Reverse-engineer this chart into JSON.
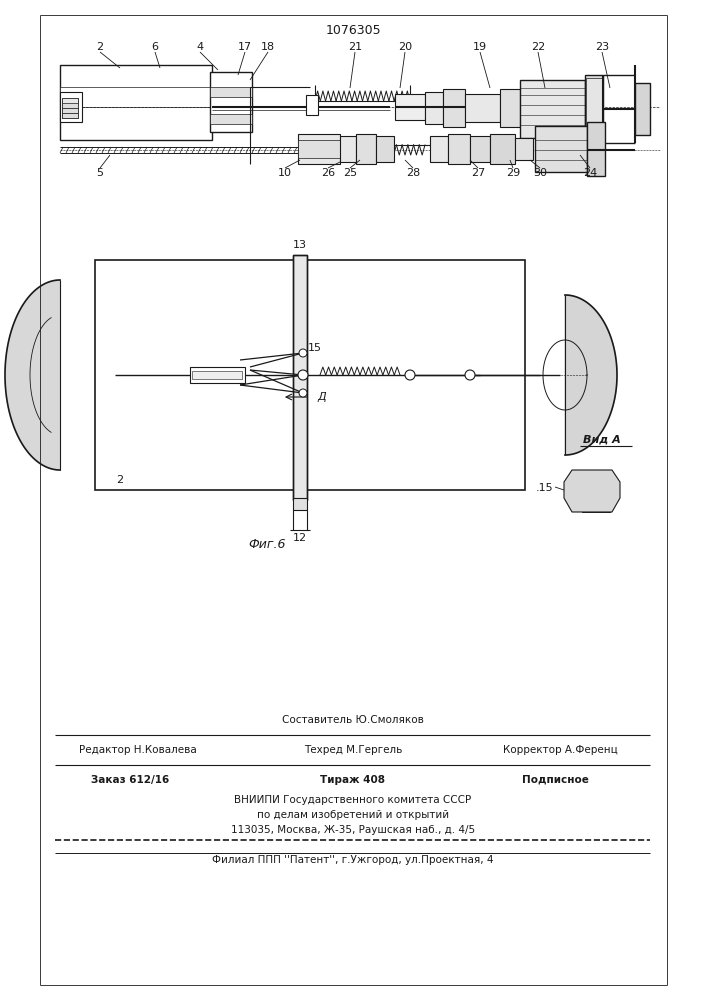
{
  "patent_number": "1076305",
  "fig_label": "Фиг.6",
  "view_label": "Вид A",
  "background": "#ffffff",
  "text_color": "#1a1a1a",
  "line_color": "#1a1a1a",
  "footer": {
    "sostavitel": "Составитель Ю.Смоляков",
    "redaktor": "Редактор Н.Ковалева",
    "tekhred": "Техред М.Гергель",
    "korrektor": "Корректор А.Ференц",
    "zakaz": "Заказ 612/16",
    "tirazh": "Тираж 408",
    "podpisnoe": "Подписное",
    "vniip": "ВНИИПИ Государственного комитета СССР",
    "po_delam": "по делам изобретений и открытий",
    "address": "113035, Москва, Ж-35, Раушская наб., д. 4/5",
    "filial": "Филиал ППП ''Патент'', г.Ужгород, ул.Проектная, 4"
  }
}
